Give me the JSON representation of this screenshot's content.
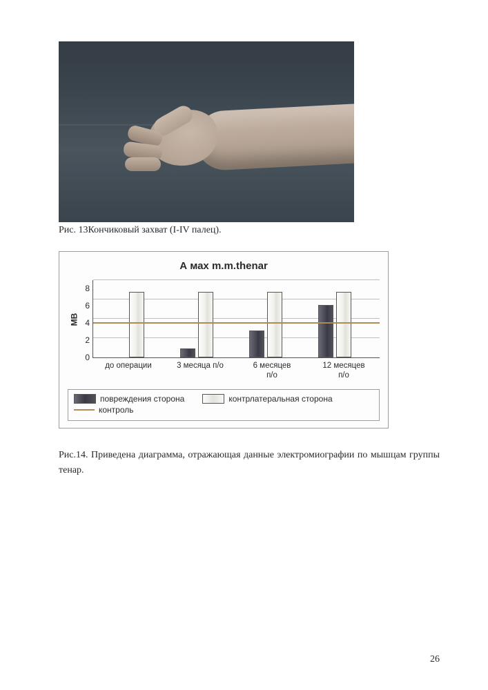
{
  "figure13": {
    "caption": "Рис. 13Кончиковый захват (I-IV палец)."
  },
  "chart": {
    "type": "bar",
    "title": "А мах m.m.thenar",
    "ylabel": "МВ",
    "ylim": [
      0,
      8
    ],
    "ytick_step": 2,
    "yticks": [
      "8",
      "6",
      "4",
      "2",
      "0"
    ],
    "control_value": 3.5,
    "control_color": "#b08a56",
    "grid_color": "#bfbfbf",
    "categories": [
      {
        "label_line1": "до операции",
        "label_line2": ""
      },
      {
        "label_line1": "3 месяца п/о",
        "label_line2": ""
      },
      {
        "label_line1": "6 месяцев",
        "label_line2": "п/о"
      },
      {
        "label_line1": "12 месяцев",
        "label_line2": "п/о"
      }
    ],
    "series": {
      "damaged": {
        "label": "повреждения сторона",
        "color_dark": true,
        "values": [
          0,
          0.9,
          2.8,
          5.4
        ]
      },
      "contra": {
        "label": "контрлатеральная сторона",
        "color_dark": false,
        "values": [
          6.8,
          6.8,
          6.8,
          6.8
        ]
      }
    },
    "legend_control": "контроль"
  },
  "figure14": {
    "caption": "Рис.14. Приведена диаграмма, отражающая данные электромиографии по мышцам группы тенар."
  },
  "page_number": "26"
}
